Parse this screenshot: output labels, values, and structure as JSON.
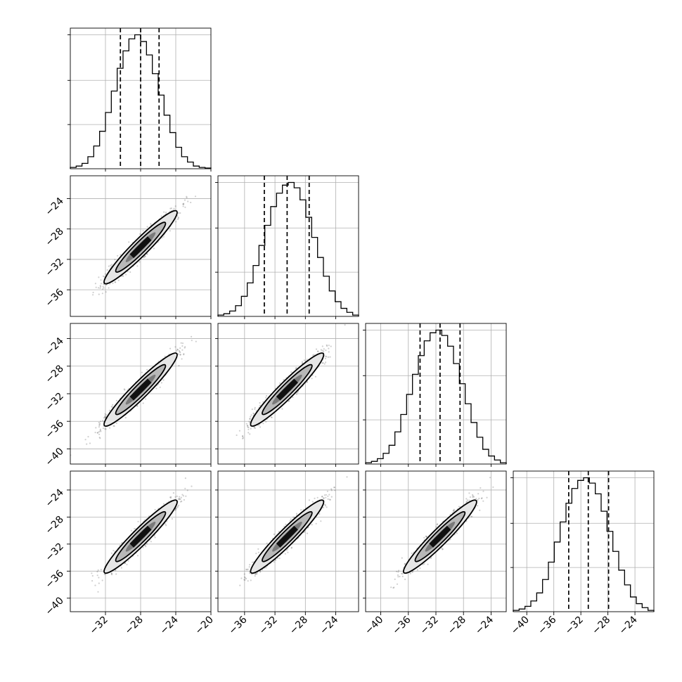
{
  "chart_data": {
    "type": "corner",
    "dimensions": 4,
    "grid": true,
    "colors": {
      "line": "#000000",
      "grid": "#b0b0b0",
      "scatter": "#2b2b2b",
      "contour_fills": [
        "#e6e6e6",
        "#b8b8b8",
        "#7a7a7a",
        "#3a3a3a"
      ]
    },
    "variables": [
      {
        "index": 0,
        "range": [
          -36,
          -20
        ],
        "median": -28.0,
        "q16": -30.3,
        "q84": -25.9,
        "ticks": [
          -32,
          -28,
          -24,
          -20
        ]
      },
      {
        "index": 1,
        "range": [
          -39.5,
          -21.0
        ],
        "median": -30.4,
        "q16": -33.4,
        "q84": -27.5,
        "ticks": [
          -36,
          -32,
          -28,
          -24
        ]
      },
      {
        "index": 2,
        "range": [
          -42.2,
          -21.8
        ],
        "median": -31.4,
        "q16": -34.3,
        "q84": -28.5,
        "ticks": [
          -40,
          -36,
          -32,
          -28,
          -24
        ]
      },
      {
        "index": 3,
        "range": [
          -42.0,
          -21.2
        ],
        "median": -30.9,
        "q16": -33.8,
        "q84": -27.9,
        "ticks": [
          -40,
          -36,
          -32,
          -28,
          -24
        ]
      }
    ],
    "histograms": [
      {
        "var": 0,
        "density": [
          0.01,
          0.02,
          0.04,
          0.09,
          0.17,
          0.28,
          0.42,
          0.58,
          0.75,
          0.88,
          0.97,
          1.0,
          0.95,
          0.85,
          0.71,
          0.55,
          0.4,
          0.27,
          0.16,
          0.09,
          0.05,
          0.02,
          0.01,
          0.005
        ]
      },
      {
        "var": 1,
        "density": [
          0.01,
          0.02,
          0.04,
          0.08,
          0.15,
          0.25,
          0.38,
          0.53,
          0.68,
          0.82,
          0.92,
          0.98,
          1.0,
          0.96,
          0.87,
          0.74,
          0.59,
          0.44,
          0.3,
          0.19,
          0.11,
          0.06,
          0.03,
          0.01
        ]
      },
      {
        "var": 2,
        "density": [
          0.01,
          0.02,
          0.04,
          0.08,
          0.14,
          0.24,
          0.37,
          0.52,
          0.67,
          0.81,
          0.92,
          0.98,
          1.0,
          0.96,
          0.88,
          0.75,
          0.6,
          0.45,
          0.31,
          0.2,
          0.11,
          0.06,
          0.03,
          0.01
        ]
      },
      {
        "var": 3,
        "density": [
          0.01,
          0.02,
          0.04,
          0.08,
          0.14,
          0.24,
          0.37,
          0.52,
          0.67,
          0.81,
          0.92,
          0.98,
          1.0,
          0.96,
          0.88,
          0.75,
          0.6,
          0.45,
          0.31,
          0.2,
          0.11,
          0.06,
          0.03,
          0.01
        ]
      }
    ],
    "pairs": [
      {
        "row": 1,
        "col": 0,
        "x_center": -28.0,
        "y_center": -30.4
      },
      {
        "row": 2,
        "col": 0,
        "x_center": -28.0,
        "y_center": -31.4
      },
      {
        "row": 2,
        "col": 1,
        "x_center": -30.4,
        "y_center": -31.4
      },
      {
        "row": 3,
        "col": 0,
        "x_center": -28.0,
        "y_center": -30.9
      },
      {
        "row": 3,
        "col": 1,
        "x_center": -30.4,
        "y_center": -30.9
      },
      {
        "row": 3,
        "col": 2,
        "x_center": -31.4,
        "y_center": -30.9
      }
    ]
  }
}
